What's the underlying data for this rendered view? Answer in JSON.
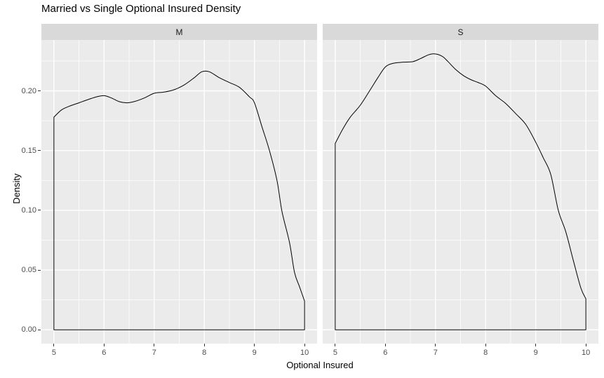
{
  "colors": {
    "background": "#FFFFFF",
    "panel_bg": "#EBEBEB",
    "strip_bg": "#D9D9D9",
    "grid": "#FFFFFF",
    "curve": "#000000",
    "tick_label": "#4D4D4D",
    "tick_mark": "#333333",
    "text": "#000000"
  },
  "axes": {
    "x": {
      "title": "Optional Insured",
      "tick_labels": [
        "5",
        "6",
        "7",
        "8",
        "9",
        "10"
      ],
      "tick_values": [
        5,
        6,
        7,
        8,
        9,
        10
      ],
      "minor_values": [
        5.5,
        6.5,
        7.5,
        8.5,
        9.5
      ],
      "range_shown": [
        4.75,
        10.25
      ]
    },
    "y": {
      "title": "Density",
      "tick_labels": [
        "0.00",
        "0.05",
        "0.10",
        "0.15",
        "0.20"
      ],
      "tick_values": [
        0,
        0.05,
        0.1,
        0.15,
        0.2
      ],
      "minor_values": [
        0.025,
        0.075,
        0.125,
        0.175,
        0.225
      ],
      "range_shown": [
        -0.0116,
        0.2426
      ]
    }
  },
  "chart_data": {
    "type": "area",
    "title": "Married vs Single Optional Insured Density",
    "xlabel": "Optional Insured",
    "ylabel": "Density",
    "xlim": [
      4.75,
      10.25
    ],
    "ylim": [
      -0.0116,
      0.2426
    ],
    "grid": "on",
    "legend_position": "none",
    "baseline": 0,
    "facets": [
      {
        "label": "M",
        "points": [
          [
            5.0,
            0.178
          ],
          [
            5.15,
            0.184
          ],
          [
            5.3,
            0.187
          ],
          [
            5.5,
            0.19
          ],
          [
            5.7,
            0.193
          ],
          [
            5.85,
            0.195
          ],
          [
            6.0,
            0.196
          ],
          [
            6.15,
            0.194
          ],
          [
            6.3,
            0.191
          ],
          [
            6.45,
            0.19
          ],
          [
            6.6,
            0.191
          ],
          [
            6.8,
            0.194
          ],
          [
            7.0,
            0.198
          ],
          [
            7.2,
            0.199
          ],
          [
            7.4,
            0.201
          ],
          [
            7.6,
            0.205
          ],
          [
            7.8,
            0.211
          ],
          [
            7.95,
            0.216
          ],
          [
            8.1,
            0.216
          ],
          [
            8.3,
            0.211
          ],
          [
            8.5,
            0.207
          ],
          [
            8.7,
            0.203
          ],
          [
            8.9,
            0.195
          ],
          [
            9.0,
            0.19
          ],
          [
            9.15,
            0.17
          ],
          [
            9.3,
            0.15
          ],
          [
            9.45,
            0.125
          ],
          [
            9.55,
            0.099
          ],
          [
            9.7,
            0.073
          ],
          [
            9.8,
            0.048
          ],
          [
            9.9,
            0.036
          ],
          [
            10.0,
            0.024
          ]
        ]
      },
      {
        "label": "S",
        "points": [
          [
            5.0,
            0.156
          ],
          [
            5.15,
            0.168
          ],
          [
            5.3,
            0.178
          ],
          [
            5.5,
            0.188
          ],
          [
            5.7,
            0.201
          ],
          [
            5.85,
            0.211
          ],
          [
            6.0,
            0.22
          ],
          [
            6.15,
            0.223
          ],
          [
            6.35,
            0.224
          ],
          [
            6.55,
            0.2245
          ],
          [
            6.7,
            0.227
          ],
          [
            6.85,
            0.23
          ],
          [
            6.95,
            0.231
          ],
          [
            7.05,
            0.2305
          ],
          [
            7.15,
            0.2285
          ],
          [
            7.25,
            0.2245
          ],
          [
            7.4,
            0.218
          ],
          [
            7.55,
            0.213
          ],
          [
            7.7,
            0.2095
          ],
          [
            7.85,
            0.207
          ],
          [
            8.0,
            0.204
          ],
          [
            8.2,
            0.196
          ],
          [
            8.4,
            0.1895
          ],
          [
            8.6,
            0.181
          ],
          [
            8.8,
            0.172
          ],
          [
            9.0,
            0.157
          ],
          [
            9.15,
            0.144
          ],
          [
            9.3,
            0.13
          ],
          [
            9.45,
            0.1
          ],
          [
            9.6,
            0.082
          ],
          [
            9.75,
            0.058
          ],
          [
            9.9,
            0.035
          ],
          [
            10.0,
            0.026
          ]
        ]
      }
    ]
  }
}
